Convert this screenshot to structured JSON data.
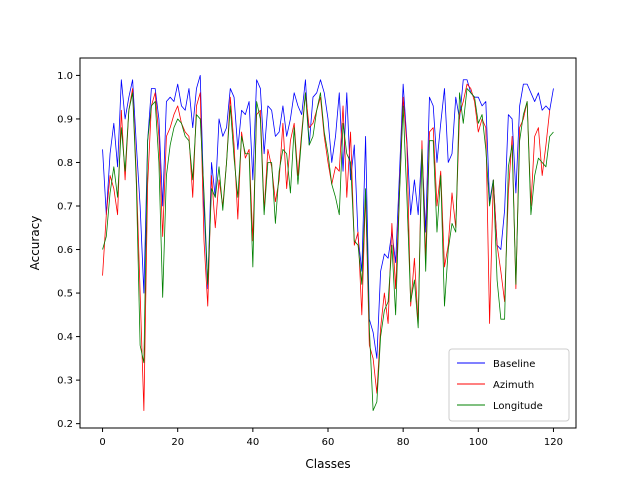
{
  "chart_data": {
    "type": "line",
    "xlabel": "Classes",
    "ylabel": "Accuracy",
    "xlim": [
      -6,
      126
    ],
    "ylim": [
      0.19,
      1.04
    ],
    "xticks": [
      0,
      20,
      40,
      60,
      80,
      100,
      120
    ],
    "yticks": [
      0.2,
      0.3,
      0.4,
      0.5,
      0.6,
      0.7,
      0.8,
      0.9,
      1.0
    ],
    "ytick_labels": [
      "0.2",
      "0.3",
      "0.4",
      "0.5",
      "0.6",
      "0.7",
      "0.8",
      "0.9",
      "1.0"
    ],
    "legend_position": "lower-right",
    "grid": false,
    "series": [
      {
        "name": "Baseline",
        "color": "#0000ff",
        "values": [
          0.83,
          0.68,
          0.82,
          0.89,
          0.79,
          0.99,
          0.9,
          0.95,
          0.99,
          0.84,
          0.7,
          0.5,
          0.85,
          0.97,
          0.97,
          0.9,
          0.7,
          0.94,
          0.95,
          0.94,
          0.98,
          0.93,
          0.92,
          0.97,
          0.88,
          0.97,
          1.0,
          0.7,
          0.51,
          0.8,
          0.72,
          0.9,
          0.86,
          0.88,
          0.97,
          0.95,
          0.83,
          0.92,
          0.91,
          0.94,
          0.76,
          0.99,
          0.97,
          0.82,
          0.93,
          0.92,
          0.86,
          0.87,
          0.93,
          0.86,
          0.9,
          0.96,
          0.93,
          0.91,
          0.99,
          0.84,
          0.95,
          0.96,
          0.99,
          0.96,
          0.9,
          0.8,
          0.86,
          0.96,
          0.78,
          0.96,
          0.76,
          0.84,
          0.63,
          0.55,
          0.86,
          0.44,
          0.41,
          0.35,
          0.55,
          0.59,
          0.58,
          0.64,
          0.57,
          0.77,
          0.98,
          0.85,
          0.68,
          0.76,
          0.68,
          0.83,
          0.64,
          0.95,
          0.93,
          0.8,
          0.89,
          0.97,
          0.8,
          0.82,
          0.95,
          0.9,
          0.99,
          0.99,
          0.96,
          0.95,
          0.95,
          0.93,
          0.94,
          0.71,
          0.76,
          0.61,
          0.6,
          0.69,
          0.91,
          0.9,
          0.73,
          0.93,
          0.98,
          0.98,
          0.96,
          0.94,
          0.96,
          0.92,
          0.93,
          0.92,
          0.97
        ]
      },
      {
        "name": "Azimuth",
        "color": "#ff0000",
        "values": [
          0.54,
          0.68,
          0.77,
          0.74,
          0.68,
          0.92,
          0.76,
          0.92,
          0.97,
          0.77,
          0.5,
          0.23,
          0.75,
          0.93,
          0.96,
          0.86,
          0.63,
          0.86,
          0.88,
          0.91,
          0.93,
          0.89,
          0.87,
          0.86,
          0.72,
          0.93,
          0.96,
          0.62,
          0.47,
          0.77,
          0.65,
          0.76,
          0.7,
          0.8,
          0.95,
          0.84,
          0.67,
          0.87,
          0.81,
          0.83,
          0.62,
          0.91,
          0.92,
          0.69,
          0.83,
          0.79,
          0.71,
          0.76,
          0.89,
          0.74,
          0.85,
          0.89,
          0.77,
          0.87,
          0.96,
          0.88,
          0.89,
          0.92,
          0.95,
          0.86,
          0.8,
          0.75,
          0.79,
          0.78,
          0.93,
          0.72,
          0.87,
          0.61,
          0.64,
          0.45,
          0.73,
          0.38,
          0.35,
          0.27,
          0.42,
          0.5,
          0.43,
          0.66,
          0.51,
          0.73,
          0.95,
          0.84,
          0.47,
          0.58,
          0.43,
          0.85,
          0.58,
          0.87,
          0.88,
          0.7,
          0.78,
          0.56,
          0.61,
          0.73,
          0.65,
          0.91,
          0.94,
          0.98,
          0.97,
          0.94,
          0.87,
          0.9,
          0.88,
          0.43,
          0.76,
          0.61,
          0.55,
          0.48,
          0.73,
          0.86,
          0.51,
          0.88,
          0.9,
          0.94,
          0.7,
          0.86,
          0.88,
          0.77,
          0.84,
          0.92
        ]
      },
      {
        "name": "Longitude",
        "color": "#008000",
        "values": [
          0.6,
          0.63,
          0.73,
          0.79,
          0.72,
          0.88,
          0.78,
          0.92,
          0.96,
          0.75,
          0.38,
          0.34,
          0.85,
          0.93,
          0.94,
          0.8,
          0.49,
          0.77,
          0.84,
          0.88,
          0.9,
          0.89,
          0.86,
          0.85,
          0.76,
          0.91,
          0.9,
          0.73,
          0.52,
          0.74,
          0.72,
          0.79,
          0.69,
          0.8,
          0.93,
          0.81,
          0.72,
          0.86,
          0.82,
          0.82,
          0.56,
          0.94,
          0.9,
          0.68,
          0.8,
          0.8,
          0.66,
          0.78,
          0.83,
          0.82,
          0.73,
          0.88,
          0.75,
          0.86,
          0.96,
          0.84,
          0.86,
          0.92,
          0.96,
          0.87,
          0.82,
          0.75,
          0.72,
          0.68,
          0.89,
          0.82,
          0.8,
          0.62,
          0.61,
          0.52,
          0.74,
          0.42,
          0.23,
          0.25,
          0.4,
          0.46,
          0.48,
          0.61,
          0.45,
          0.72,
          0.93,
          0.72,
          0.48,
          0.53,
          0.42,
          0.83,
          0.55,
          0.85,
          0.85,
          0.64,
          0.77,
          0.47,
          0.6,
          0.66,
          0.64,
          0.96,
          0.89,
          0.97,
          0.96,
          0.95,
          0.89,
          0.91,
          0.83,
          0.7,
          0.76,
          0.53,
          0.44,
          0.44,
          0.79,
          0.84,
          0.52,
          0.85,
          0.91,
          0.94,
          0.68,
          0.77,
          0.81,
          0.8,
          0.79,
          0.86,
          0.87
        ]
      }
    ]
  }
}
